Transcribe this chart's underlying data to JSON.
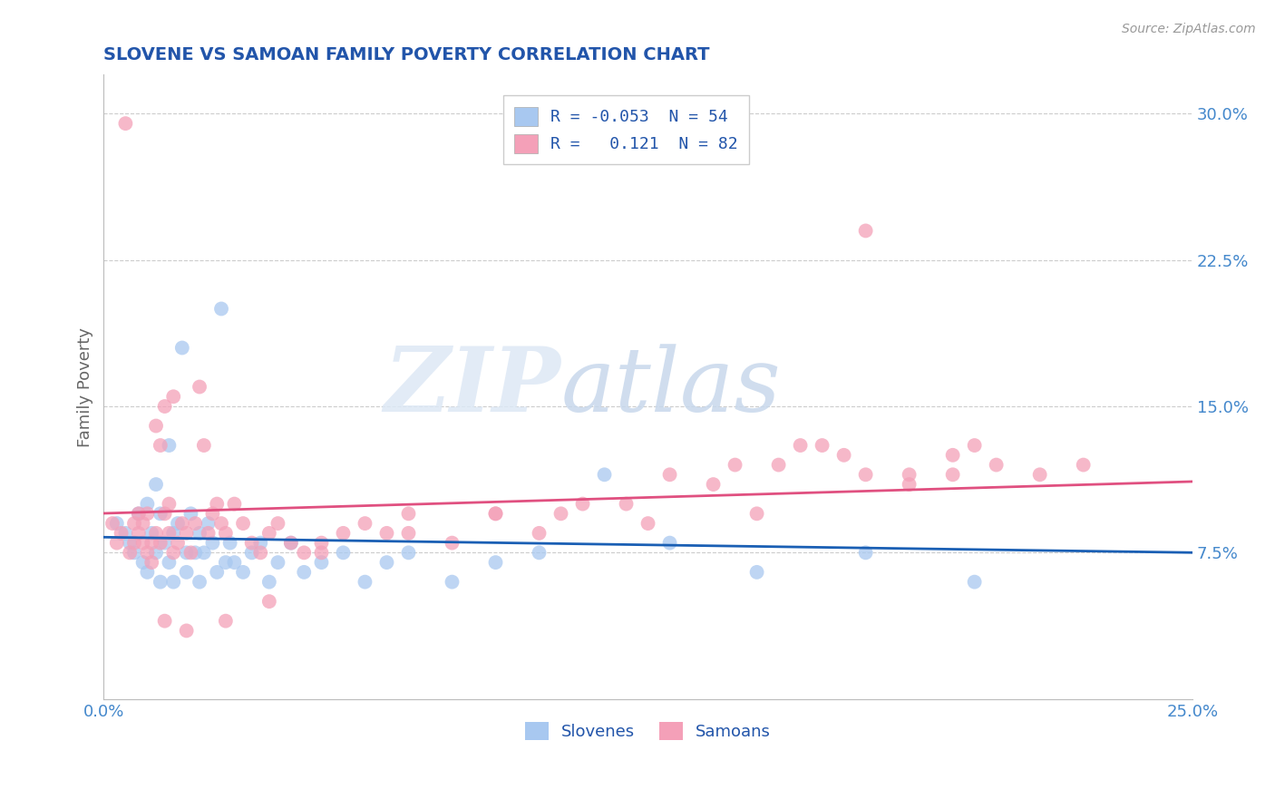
{
  "title": "SLOVENE VS SAMOAN FAMILY POVERTY CORRELATION CHART",
  "source_text": "Source: ZipAtlas.com",
  "ylabel": "Family Poverty",
  "xlim": [
    0.0,
    0.25
  ],
  "ylim": [
    0.0,
    0.32
  ],
  "yticks": [
    0.075,
    0.15,
    0.225,
    0.3
  ],
  "ytick_labels": [
    "7.5%",
    "15.0%",
    "22.5%",
    "30.0%"
  ],
  "xticks": [
    0.0,
    0.25
  ],
  "xtick_labels": [
    "0.0%",
    "25.0%"
  ],
  "slovene_color": "#a8c8f0",
  "samoan_color": "#f4a0b8",
  "slovene_line_color": "#1a5fb4",
  "samoan_line_color": "#e05080",
  "R_slovene": -0.053,
  "N_slovene": 54,
  "R_samoan": 0.121,
  "N_samoan": 82,
  "title_color": "#2255aa",
  "axis_label_color": "#666666",
  "tick_color": "#4488cc",
  "background_color": "#ffffff",
  "grid_color": "#cccccc",
  "watermark_zip": "ZIP",
  "watermark_atlas": "atlas",
  "slovene_x": [
    0.003,
    0.005,
    0.006,
    0.007,
    0.008,
    0.009,
    0.01,
    0.01,
    0.011,
    0.012,
    0.012,
    0.013,
    0.013,
    0.014,
    0.015,
    0.015,
    0.016,
    0.016,
    0.017,
    0.018,
    0.019,
    0.019,
    0.02,
    0.021,
    0.022,
    0.022,
    0.023,
    0.024,
    0.025,
    0.026,
    0.027,
    0.028,
    0.029,
    0.03,
    0.032,
    0.034,
    0.036,
    0.038,
    0.04,
    0.043,
    0.046,
    0.05,
    0.055,
    0.06,
    0.065,
    0.07,
    0.08,
    0.09,
    0.1,
    0.115,
    0.13,
    0.15,
    0.175,
    0.2
  ],
  "slovene_y": [
    0.09,
    0.085,
    0.08,
    0.075,
    0.095,
    0.07,
    0.1,
    0.065,
    0.085,
    0.11,
    0.075,
    0.095,
    0.06,
    0.08,
    0.13,
    0.07,
    0.085,
    0.06,
    0.09,
    0.18,
    0.075,
    0.065,
    0.095,
    0.075,
    0.085,
    0.06,
    0.075,
    0.09,
    0.08,
    0.065,
    0.2,
    0.07,
    0.08,
    0.07,
    0.065,
    0.075,
    0.08,
    0.06,
    0.07,
    0.08,
    0.065,
    0.07,
    0.075,
    0.06,
    0.07,
    0.075,
    0.06,
    0.07,
    0.075,
    0.115,
    0.08,
    0.065,
    0.075,
    0.06
  ],
  "samoan_x": [
    0.002,
    0.003,
    0.004,
    0.005,
    0.006,
    0.007,
    0.007,
    0.008,
    0.008,
    0.009,
    0.009,
    0.01,
    0.01,
    0.011,
    0.011,
    0.012,
    0.012,
    0.013,
    0.013,
    0.014,
    0.014,
    0.015,
    0.015,
    0.016,
    0.016,
    0.017,
    0.018,
    0.019,
    0.02,
    0.021,
    0.022,
    0.023,
    0.024,
    0.025,
    0.026,
    0.027,
    0.028,
    0.03,
    0.032,
    0.034,
    0.036,
    0.038,
    0.04,
    0.043,
    0.046,
    0.05,
    0.055,
    0.06,
    0.065,
    0.07,
    0.08,
    0.09,
    0.1,
    0.11,
    0.125,
    0.14,
    0.155,
    0.17,
    0.185,
    0.2,
    0.215,
    0.225,
    0.175,
    0.165,
    0.15,
    0.195,
    0.205,
    0.195,
    0.185,
    0.175,
    0.16,
    0.145,
    0.13,
    0.12,
    0.105,
    0.09,
    0.07,
    0.05,
    0.038,
    0.028,
    0.019,
    0.014
  ],
  "samoan_y": [
    0.09,
    0.08,
    0.085,
    0.295,
    0.075,
    0.08,
    0.09,
    0.085,
    0.095,
    0.08,
    0.09,
    0.075,
    0.095,
    0.08,
    0.07,
    0.14,
    0.085,
    0.13,
    0.08,
    0.095,
    0.15,
    0.085,
    0.1,
    0.075,
    0.155,
    0.08,
    0.09,
    0.085,
    0.075,
    0.09,
    0.16,
    0.13,
    0.085,
    0.095,
    0.1,
    0.09,
    0.085,
    0.1,
    0.09,
    0.08,
    0.075,
    0.085,
    0.09,
    0.08,
    0.075,
    0.08,
    0.085,
    0.09,
    0.085,
    0.095,
    0.08,
    0.095,
    0.085,
    0.1,
    0.09,
    0.11,
    0.12,
    0.125,
    0.115,
    0.13,
    0.115,
    0.12,
    0.24,
    0.13,
    0.095,
    0.115,
    0.12,
    0.125,
    0.11,
    0.115,
    0.13,
    0.12,
    0.115,
    0.1,
    0.095,
    0.095,
    0.085,
    0.075,
    0.05,
    0.04,
    0.035,
    0.04
  ]
}
